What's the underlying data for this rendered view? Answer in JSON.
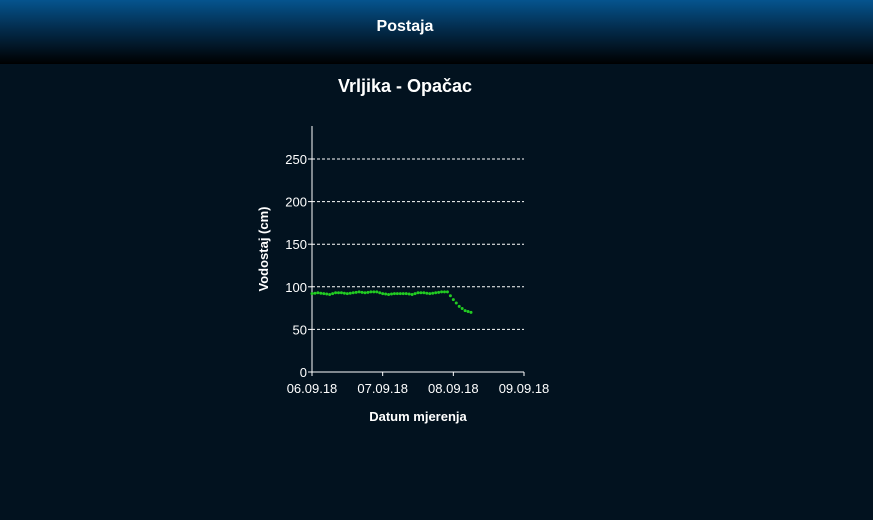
{
  "header": {
    "title": "Postaja"
  },
  "page_title": "Vrljika - Opačac",
  "chart_data": {
    "type": "scatter",
    "title": "Vrljika - Opačac",
    "xlabel": "Datum mjerenja",
    "ylabel": "Vodostaj (cm)",
    "ylim": [
      0,
      290
    ],
    "yticks": [
      0,
      50,
      100,
      150,
      200,
      250
    ],
    "xlim": [
      "06.09.18",
      "09.09.18"
    ],
    "xticks": [
      "06.09.18",
      "07.09.18",
      "08.09.18",
      "09.09.18"
    ],
    "grid": "horizontal dashed",
    "colors": {
      "series": "#22cc22",
      "grid": "#ffffff",
      "axis": "#ffffff"
    },
    "series": [
      {
        "x_hours_from_start_label": "06.09.18",
        "points": [
          [
            "06.09.18 00:00",
            92
          ],
          [
            "06.09.18 02:00",
            93
          ],
          [
            "06.09.18 04:00",
            92
          ],
          [
            "06.09.18 06:00",
            91
          ],
          [
            "06.09.18 08:00",
            93
          ],
          [
            "06.09.18 10:00",
            93
          ],
          [
            "06.09.18 12:00",
            92
          ],
          [
            "06.09.18 14:00",
            93
          ],
          [
            "06.09.18 16:00",
            94
          ],
          [
            "06.09.18 18:00",
            93
          ],
          [
            "06.09.18 20:00",
            94
          ],
          [
            "06.09.18 22:00",
            94
          ],
          [
            "07.09.18 00:00",
            92
          ],
          [
            "07.09.18 02:00",
            91
          ],
          [
            "07.09.18 04:00",
            92
          ],
          [
            "07.09.18 06:00",
            92
          ],
          [
            "07.09.18 08:00",
            92
          ],
          [
            "07.09.18 10:00",
            91
          ],
          [
            "07.09.18 12:00",
            93
          ],
          [
            "07.09.18 14:00",
            93
          ],
          [
            "07.09.18 16:00",
            92
          ],
          [
            "07.09.18 18:00",
            93
          ],
          [
            "07.09.18 20:00",
            94
          ],
          [
            "07.09.18 22:00",
            94
          ],
          [
            "08.09.18 00:00",
            85
          ],
          [
            "08.09.18 02:00",
            77
          ],
          [
            "08.09.18 04:00",
            72
          ],
          [
            "08.09.18 06:00",
            70
          ]
        ]
      }
    ]
  }
}
